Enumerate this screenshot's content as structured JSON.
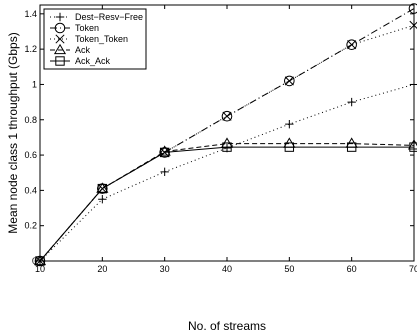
{
  "chart_data": {
    "type": "line",
    "title": "",
    "xlabel": "No. of streams",
    "ylabel": "Mean node class 1 throughput (Gbps)",
    "xlim": [
      10,
      70
    ],
    "ylim": [
      0,
      1.45
    ],
    "xticks": [
      10,
      20,
      30,
      40,
      50,
      60,
      70
    ],
    "xtick_labels": [
      "10",
      "20",
      "30",
      "40",
      "50",
      "60",
      "70"
    ],
    "yticks": [
      0,
      0.2,
      0.4,
      0.6,
      0.8,
      1,
      1.2,
      1.4
    ],
    "ytick_labels": [
      "0",
      "0.2",
      "0.4",
      "0.6",
      "0.8",
      "1",
      "1.2",
      "1.4"
    ],
    "grid": false,
    "legend_position": "top-left",
    "x": [
      10,
      20,
      30,
      40,
      50,
      60,
      70
    ],
    "series": [
      {
        "name": "Dest−Resv−Free",
        "marker": "plus",
        "line": "dotted",
        "values": [
          0,
          0.35,
          0.505,
          0.64,
          0.775,
          0.9,
          1.0
        ]
      },
      {
        "name": "Token",
        "marker": "circle",
        "line": "dashdot",
        "values": [
          0,
          0.41,
          0.615,
          0.82,
          1.02,
          1.225,
          1.43
        ]
      },
      {
        "name": "Token_Token",
        "marker": "x",
        "line": "dotted",
        "values": [
          0,
          0.41,
          0.615,
          0.82,
          1.02,
          1.225,
          1.335
        ]
      },
      {
        "name": "Ack",
        "marker": "triangle",
        "line": "dashed",
        "values": [
          0,
          0.41,
          0.62,
          0.665,
          0.665,
          0.665,
          0.655
        ]
      },
      {
        "name": "Ack_Ack",
        "marker": "square",
        "line": "solid",
        "values": [
          0,
          0.41,
          0.615,
          0.645,
          0.645,
          0.645,
          0.645
        ]
      }
    ]
  }
}
